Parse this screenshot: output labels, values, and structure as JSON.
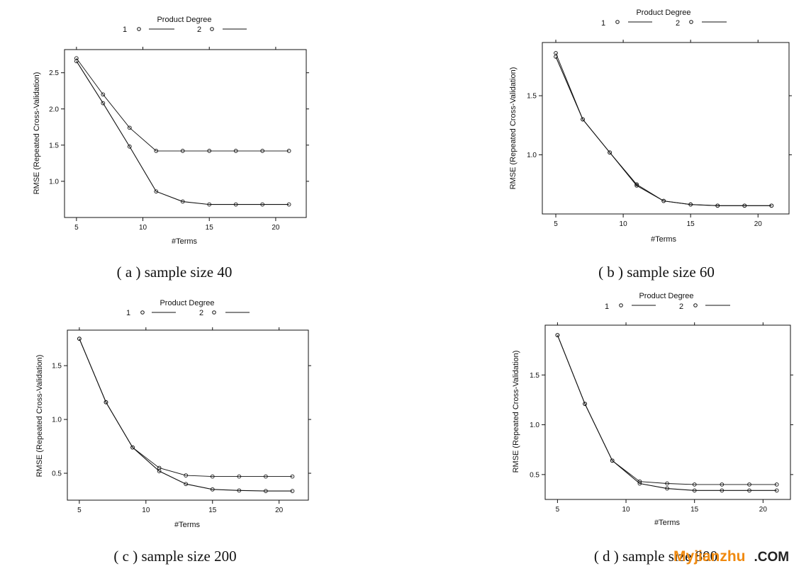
{
  "chart_data": [
    {
      "type": "line",
      "caption": "( a ) sample size 40",
      "xlabel": "#Terms",
      "ylabel": "RMSE (Repeated Cross-Validation)",
      "legend_title": "Product Degree",
      "legend_labels": [
        "1",
        "2"
      ],
      "xlim": [
        4.1,
        22.3
      ],
      "ylim": [
        0.5,
        2.82
      ],
      "xticks": [
        5,
        10,
        15,
        20
      ],
      "yticks": [
        1.0,
        1.5,
        2.0,
        2.5
      ],
      "ytick_labels": [
        "1.0",
        "1.5",
        "2.0",
        "2.5"
      ],
      "x": [
        5,
        7,
        9,
        11,
        13,
        15,
        17,
        19,
        21
      ],
      "series": [
        {
          "name": "1",
          "values": [
            2.7,
            2.2,
            1.74,
            1.42,
            1.42,
            1.42,
            1.42,
            1.42,
            1.42
          ]
        },
        {
          "name": "2",
          "values": [
            2.66,
            2.08,
            1.48,
            0.86,
            0.72,
            0.68,
            0.68,
            0.68,
            0.68
          ]
        }
      ]
    },
    {
      "type": "line",
      "caption": "( b ) sample size 60",
      "xlabel": "#Terms",
      "ylabel": "RMSE (Repeated Cross-Validation)",
      "legend_title": "Product Degree",
      "legend_labels": [
        "1",
        "2"
      ],
      "xlim": [
        4.0,
        22.3
      ],
      "ylim": [
        0.5,
        1.95
      ],
      "xticks": [
        5,
        10,
        15,
        20
      ],
      "yticks": [
        1.0,
        1.5
      ],
      "ytick_labels": [
        "1.0",
        "1.5"
      ],
      "x": [
        5,
        7,
        9,
        11,
        13,
        15,
        17,
        19,
        21
      ],
      "series": [
        {
          "name": "1",
          "values": [
            1.86,
            1.3,
            1.02,
            0.75,
            0.61,
            0.58,
            0.57,
            0.57,
            0.57
          ]
        },
        {
          "name": "2",
          "values": [
            1.83,
            1.3,
            1.02,
            0.74,
            0.61,
            0.58,
            0.57,
            0.57,
            0.57
          ]
        }
      ]
    },
    {
      "type": "line",
      "caption": "( c ) sample size 200",
      "xlabel": "#Terms",
      "ylabel": "RMSE (Repeated Cross-Validation)",
      "legend_title": "Product Degree",
      "legend_labels": [
        "1",
        "2"
      ],
      "xlim": [
        4.1,
        22.2
      ],
      "ylim": [
        0.25,
        1.83
      ],
      "xticks": [
        5,
        10,
        15,
        20
      ],
      "yticks": [
        0.5,
        1.0,
        1.5
      ],
      "ytick_labels": [
        "0.5",
        "1.0",
        "1.5"
      ],
      "x": [
        5,
        7,
        9,
        11,
        13,
        15,
        17,
        19,
        21
      ],
      "series": [
        {
          "name": "1",
          "values": [
            1.75,
            1.16,
            0.74,
            0.55,
            0.48,
            0.47,
            0.47,
            0.47,
            0.47
          ]
        },
        {
          "name": "2",
          "values": [
            1.75,
            1.16,
            0.74,
            0.52,
            0.4,
            0.35,
            0.34,
            0.335,
            0.335
          ]
        }
      ]
    },
    {
      "type": "line",
      "caption": "( d ) sample size 800",
      "xlabel": "#Terms",
      "ylabel": "RMSE (Repeated Cross-Validation)",
      "legend_title": "Product Degree",
      "legend_labels": [
        "1",
        "2"
      ],
      "xlim": [
        4.1,
        22.0
      ],
      "ylim": [
        0.25,
        2.0
      ],
      "xticks": [
        5,
        10,
        15,
        20
      ],
      "yticks": [
        0.5,
        1.0,
        1.5
      ],
      "ytick_labels": [
        "0.5",
        "1.0",
        "1.5"
      ],
      "x": [
        5,
        7,
        9,
        11,
        13,
        15,
        17,
        19,
        21
      ],
      "series": [
        {
          "name": "1",
          "values": [
            1.9,
            1.21,
            0.64,
            0.43,
            0.41,
            0.4,
            0.4,
            0.4,
            0.4
          ]
        },
        {
          "name": "2",
          "values": [
            1.9,
            1.21,
            0.64,
            0.41,
            0.36,
            0.34,
            0.34,
            0.34,
            0.34
          ]
        }
      ]
    }
  ],
  "watermark": {
    "brand": "Myjianzhu",
    "suffix": ".COM",
    "colors": {
      "brand": "#f08a10",
      "suffix": "#222222"
    }
  }
}
